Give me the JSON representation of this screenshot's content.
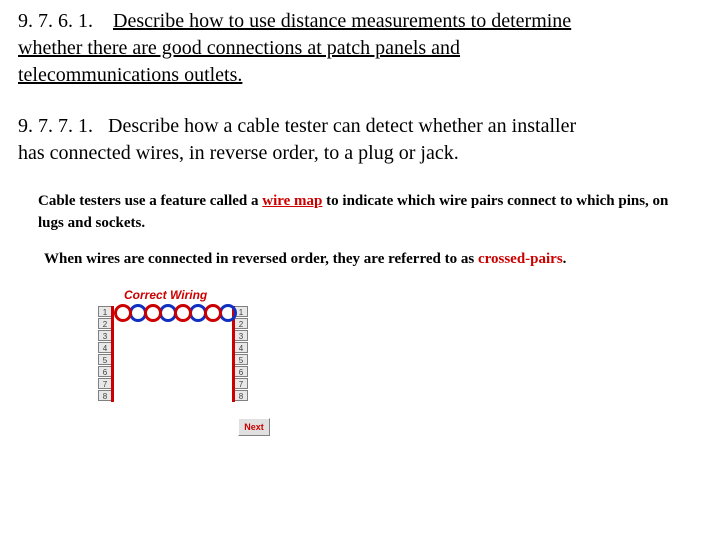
{
  "section1": {
    "number": "9. 7. 6. 1.",
    "title_line1": "Describe how to use distance measurements to determine",
    "title_line2": "whether there are good connections at patch panels and",
    "title_line3": "telecommunications outlets."
  },
  "section2": {
    "number": "9. 7. 7. 1.",
    "title_line1": "Describe how a cable tester can detect whether an installer",
    "title_line2": "has connected wires, in reverse order, to a plug or jack."
  },
  "body1": {
    "pre": "Cable testers use a feature called a ",
    "term": "wire map",
    "post": " to indicate which wire pairs connect to which pins, on  lugs and sockets."
  },
  "body2": {
    "pre": "When wires are connected in reversed order, they are referred to as ",
    "term": "crossed-pairs",
    "post": "."
  },
  "diagram": {
    "title": "Correct Wiring",
    "pins_left": [
      "1",
      "2",
      "3",
      "4",
      "5",
      "6",
      "7",
      "8"
    ],
    "pins_right": [
      "1",
      "2",
      "3",
      "4",
      "5",
      "6",
      "7",
      "8"
    ],
    "ring_colors": [
      "#cc0000",
      "#1030c0",
      "#cc0000",
      "#1030c0",
      "#cc0000",
      "#1030c0",
      "#cc0000",
      "#1030c0"
    ],
    "pin_bg": "#e8e8e8",
    "next_label": "Next"
  }
}
